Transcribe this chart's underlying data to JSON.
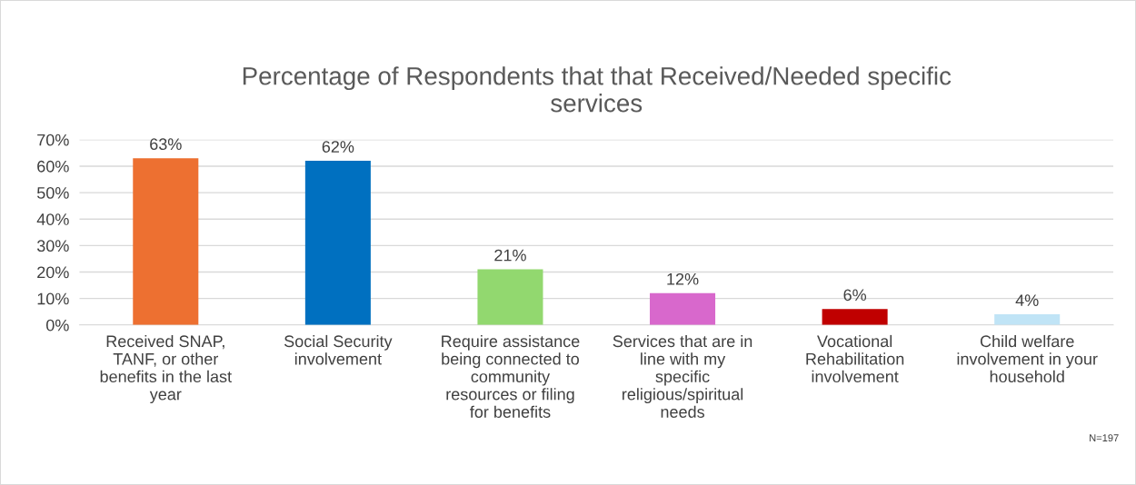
{
  "chart_data": {
    "type": "bar",
    "title": "Percentage of Respondents that that Received/Needed specific\nservices",
    "categories": [
      "Received SNAP,\nTANF, or other\nbenefits in the last\nyear",
      "Social Security\ninvolvement",
      "Require assistance\nbeing connected to\ncommunity\nresources or filing\nfor benefits",
      "Services that are in\nline with my\nspecific\nreligious/spiritual\nneeds",
      "Vocational\nRehabilitation\ninvolvement",
      "Child welfare\ninvolvement in your\nhousehold"
    ],
    "values": [
      63,
      62,
      21,
      12,
      6,
      4
    ],
    "colors": [
      "#ed7031",
      "#0070c0",
      "#92d86f",
      "#d868cc",
      "#c00000",
      "#c0e4f6"
    ],
    "value_labels": [
      "63%",
      "62%",
      "21%",
      "12%",
      "6%",
      "4%"
    ],
    "ylim": [
      0,
      70
    ],
    "yticks": [
      {
        "value": 0,
        "label": "0%"
      },
      {
        "value": 10,
        "label": "10%"
      },
      {
        "value": 20,
        "label": "20%"
      },
      {
        "value": 30,
        "label": "30%"
      },
      {
        "value": 40,
        "label": "40%"
      },
      {
        "value": 50,
        "label": "50%"
      },
      {
        "value": 60,
        "label": "60%"
      },
      {
        "value": 70,
        "label": "70%"
      }
    ],
    "grid": "y",
    "annotations": [
      "N=197"
    ]
  }
}
